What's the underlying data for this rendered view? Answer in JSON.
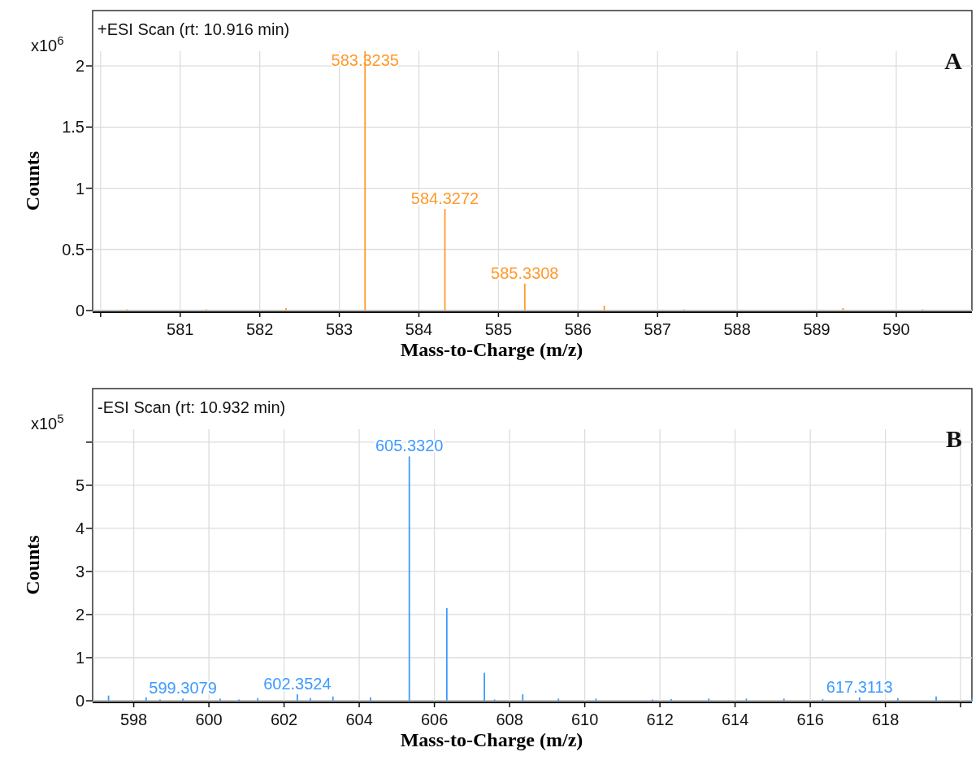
{
  "chart_data": [
    {
      "type": "bar",
      "title": "+ESI Scan (rt: 10.916 min)",
      "xlabel": "Mass-to-Charge (m/z)",
      "ylabel": "Counts",
      "grid": true,
      "annotations": [
        "x10$^{6}$",
        "A",
        {
          "text": "583.3235",
          "x": 583.3235,
          "y": 2.12
        },
        {
          "text": "584.3272",
          "x": 584.3272,
          "y": 0.83
        },
        {
          "text": "585.3308",
          "x": 585.3308,
          "y": 0.22
        }
      ],
      "xlim": [
        579.92,
        590.95
      ],
      "xticks": [
        {
          "value": 580,
          "label": null
        },
        581,
        582,
        583,
        584,
        585,
        586,
        587,
        588,
        589,
        590
      ],
      "ylim": [
        0,
        2.12
      ],
      "yticks": [
        0,
        0.5,
        1,
        1.5,
        2
      ],
      "series": [
        {
          "color": "#ff9a2e",
          "x": [
            580.33,
            581.33,
            582.33,
            583.3235,
            584.3272,
            585.3308,
            586.33,
            587.33,
            589.33,
            590.33
          ],
          "values": [
            0.01,
            0.01,
            0.02,
            2.12,
            0.83,
            0.22,
            0.04,
            0.01,
            0.02,
            0.01
          ]
        }
      ]
    },
    {
      "type": "bar",
      "title": "-ESI Scan (rt: 10.932 min)",
      "xlabel": "Mass-to-Charge (m/z)",
      "ylabel": "Counts",
      "grid": true,
      "annotations": [
        "x10$^{5}$",
        "B",
        {
          "text": "599.3079",
          "x": 599.3079,
          "y": 0.05
        },
        {
          "text": "602.3524",
          "x": 602.3524,
          "y": 0.15
        },
        {
          "text": "605.3320",
          "x": 605.332,
          "y": 5.67
        },
        {
          "text": "617.3113",
          "x": 617.3113,
          "y": 0.08
        }
      ],
      "xlim": [
        596.95,
        620.3
      ],
      "xticks": [
        598,
        600,
        602,
        604,
        606,
        608,
        610,
        612,
        614,
        616,
        618,
        {
          "value": 620,
          "label": null
        }
      ],
      "ylim": [
        0,
        6.3
      ],
      "yticks": [
        0,
        1,
        2,
        3,
        4,
        5,
        {
          "value": 6,
          "label": null
        }
      ],
      "series": [
        {
          "color": "#3d9bff",
          "x": [
            597.33,
            598.33,
            598.7,
            599.3079,
            600.3,
            600.8,
            601.3,
            602.3524,
            602.7,
            603.3,
            604.3,
            605.332,
            606.33,
            607.33,
            607.6,
            608.35,
            609.3,
            610.3,
            611.8,
            612.3,
            613.3,
            614.3,
            615.3,
            616.33,
            617.3113,
            618.33,
            619.35,
            620.3
          ],
          "values": [
            0.12,
            0.08,
            0.03,
            0.05,
            0.05,
            0.03,
            0.06,
            0.15,
            0.06,
            0.1,
            0.08,
            5.67,
            2.15,
            0.65,
            0.03,
            0.15,
            0.05,
            0.05,
            0.03,
            0.04,
            0.05,
            0.05,
            0.05,
            0.04,
            0.08,
            0.06,
            0.1,
            0.05
          ]
        }
      ]
    }
  ]
}
